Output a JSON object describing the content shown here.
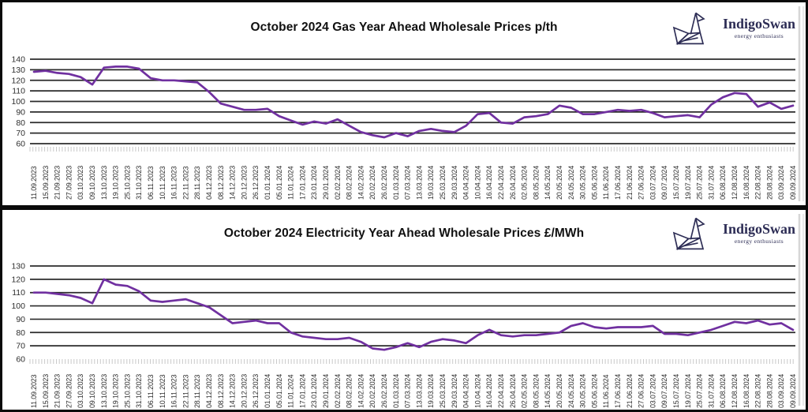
{
  "branding": {
    "name": "IndigoSwan",
    "tagline": "energy enthusiasts"
  },
  "colors": {
    "line": "#7030A0",
    "grid": "#2b2b2b",
    "label": "#2e2e2e",
    "tick_comb": "#c9c9c9",
    "logo": "#2d2d55",
    "panel_border": "#0a0a0a"
  },
  "chart_data": [
    {
      "type": "line",
      "title": "October 2024 Gas Year Ahead Wholesale Prices p/th",
      "unit": "p/th",
      "ylim": [
        60,
        140
      ],
      "y_ticks": [
        60,
        70,
        80,
        90,
        100,
        110,
        120,
        130,
        140
      ],
      "grid": "horizontal",
      "legend": "none",
      "x_tick_label_rotation": -90,
      "x_labels": [
        "11.09.2023",
        "15.09.2023",
        "21.09.2023",
        "27.09.2023",
        "03.10.2023",
        "09.10.2023",
        "13.10.2023",
        "19.10.2023",
        "25.10.2023",
        "31.10.2023",
        "06.11.2023",
        "10.11.2023",
        "16.11.2023",
        "22.11.2023",
        "28.11.2023",
        "04.12.2023",
        "08.12.2023",
        "14.12.2023",
        "20.12.2023",
        "26.12.2023",
        "01.01.2024",
        "05.01.2024",
        "11.01.2024",
        "17.01.2024",
        "23.01.2024",
        "29.01.2024",
        "02.02.2024",
        "08.02.2024",
        "14.02.2024",
        "20.02.2024",
        "26.02.2024",
        "01.03.2024",
        "07.03.2024",
        "13.03.2024",
        "19.03.2024",
        "25.03.2024",
        "29.03.2024",
        "04.04.2024",
        "10.04.2024",
        "16.04.2024",
        "22.04.2024",
        "26.04.2024",
        "02.05.2024",
        "08.05.2024",
        "14.05.2024",
        "20.05.2024",
        "24.05.2024",
        "30.05.2024",
        "05.06.2024",
        "11.06.2024",
        "17.06.2024",
        "21.06.2024",
        "27.06.2024",
        "03.07.2024",
        "09.07.2024",
        "15.07.2024",
        "19.07.2024",
        "25.07.2024",
        "31.07.2024",
        "06.08.2024",
        "12.08.2024",
        "16.08.2024",
        "22.08.2024",
        "28.08.2024",
        "03.09.2024",
        "09.09.2024"
      ],
      "series": [
        {
          "name": "Gas Year Ahead p/th",
          "color": "#7030A0",
          "values": [
            128,
            129,
            127,
            126,
            123,
            116,
            132,
            133,
            133,
            131,
            122,
            120,
            120,
            119,
            118,
            109,
            98,
            95,
            92,
            92,
            93,
            86,
            82,
            78,
            81,
            79,
            83,
            77,
            71,
            68,
            66,
            70,
            67,
            72,
            74,
            72,
            71,
            77,
            88,
            89,
            80,
            79,
            85,
            86,
            88,
            96,
            94,
            88,
            88,
            90,
            92,
            91,
            92,
            89,
            85,
            86,
            87,
            85,
            97,
            104,
            108,
            107,
            95,
            99,
            93,
            96
          ]
        }
      ]
    },
    {
      "type": "line",
      "title": "October 2024 Electricity Year Ahead Wholesale Prices £/MWh",
      "unit": "£/MWh",
      "ylim": [
        60,
        130
      ],
      "y_ticks": [
        60,
        70,
        80,
        90,
        100,
        110,
        120,
        130
      ],
      "grid": "horizontal",
      "legend": "none",
      "x_tick_label_rotation": -90,
      "x_labels": [
        "11.09.2023",
        "15.09.2023",
        "21.09.2023",
        "27.09.2023",
        "03.10.2023",
        "09.10.2023",
        "13.10.2023",
        "19.10.2023",
        "25.10.2023",
        "31.10.2023",
        "06.11.2023",
        "10.11.2023",
        "16.11.2023",
        "22.11.2023",
        "28.11.2023",
        "04.12.2023",
        "08.12.2023",
        "14.12.2023",
        "20.12.2023",
        "26.12.2023",
        "01.01.2024",
        "05.01.2024",
        "11.01.2024",
        "17.01.2024",
        "23.01.2024",
        "29.01.2024",
        "02.02.2024",
        "08.02.2024",
        "14.02.2024",
        "20.02.2024",
        "26.02.2024",
        "01.03.2024",
        "07.03.2024",
        "13.03.2024",
        "19.03.2024",
        "25.03.2024",
        "29.03.2024",
        "04.04.2024",
        "10.04.2024",
        "16.04.2024",
        "22.04.2024",
        "26.04.2024",
        "02.05.2024",
        "08.05.2024",
        "14.05.2024",
        "20.05.2024",
        "24.05.2024",
        "30.05.2024",
        "05.06.2024",
        "11.06.2024",
        "17.06.2024",
        "21.06.2024",
        "27.06.2024",
        "03.07.2024",
        "09.07.2024",
        "15.07.2024",
        "19.07.2024",
        "25.07.2024",
        "31.07.2024",
        "06.08.2024",
        "12.08.2024",
        "16.08.2024",
        "22.08.2024",
        "28.08.2024",
        "03.09.2024",
        "09.09.2024"
      ],
      "series": [
        {
          "name": "Electricity Year Ahead £/MWh",
          "color": "#7030A0",
          "values": [
            110,
            110,
            109,
            108,
            106,
            102,
            120,
            116,
            115,
            111,
            104,
            103,
            104,
            105,
            102,
            99,
            93,
            87,
            88,
            89,
            87,
            87,
            80,
            77,
            76,
            75,
            75,
            76,
            73,
            68,
            67,
            69,
            72,
            69,
            73,
            75,
            74,
            72,
            78,
            82,
            78,
            77,
            78,
            78,
            79,
            80,
            85,
            87,
            84,
            83,
            84,
            84,
            84,
            85,
            79,
            79,
            78,
            80,
            82,
            85,
            88,
            87,
            89,
            86,
            87,
            82
          ]
        }
      ]
    }
  ]
}
